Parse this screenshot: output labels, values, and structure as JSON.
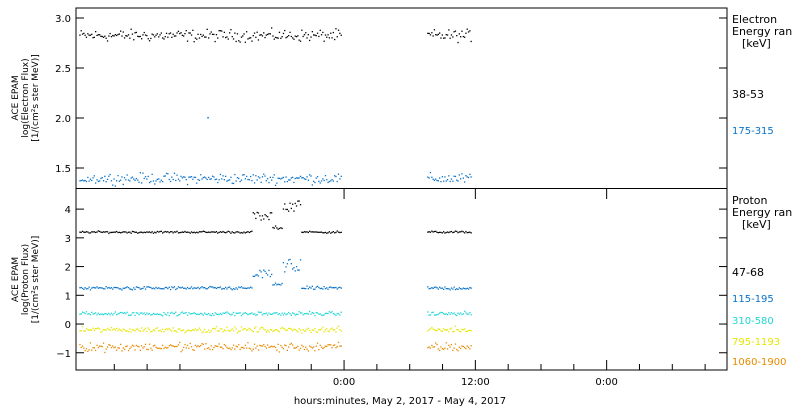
{
  "xlabel": "hours:minutes, May  2, 2017 - May  4, 2017",
  "x_ticks": [
    "0:00",
    "12:00",
    "0:00"
  ],
  "chart_data": [
    {
      "type": "scatter",
      "name": "electron",
      "ylabel": [
        "ACE EPAM",
        "log(Electron Flux)",
        "[1/(cm²s ster MeV)]"
      ],
      "ylim": [
        1.3,
        3.1
      ],
      "y_ticks": [
        "1.5",
        "2.0",
        "2.5",
        "3.0"
      ],
      "y_tick_values": [
        1.5,
        2.0,
        2.5,
        3.0
      ],
      "legend_title": [
        "Electron",
        "Energy ran",
        "[keV]"
      ],
      "data_gap_hours": [
        -0.2,
        7.6
      ],
      "x_range_hours": [
        -24.5,
        35
      ],
      "series": [
        {
          "name": "38-53",
          "color": "#000000",
          "mean": 2.83,
          "noise": 0.05
        },
        {
          "name": "175-315",
          "color": "#0a72c8",
          "mean": 1.4,
          "noise": 0.045,
          "outlier": {
            "x": -12.5,
            "y": 2.01
          }
        }
      ]
    },
    {
      "type": "scatter",
      "name": "proton",
      "ylabel": [
        "ACE EPAM",
        "log(Proton Flux)",
        "[1/(cm²s ster MeV)]"
      ],
      "ylim": [
        -1.6,
        4.7
      ],
      "y_ticks": [
        "−1",
        "0",
        "1",
        "2",
        "3",
        "4"
      ],
      "y_tick_values": [
        -1,
        0,
        1,
        2,
        3,
        4
      ],
      "legend_title": [
        "Proton",
        "Energy ran",
        "[keV]"
      ],
      "series": [
        {
          "name": "47-68",
          "color": "#000000",
          "mean": 3.22,
          "noise": 0.03,
          "bump": 1.0
        },
        {
          "name": "115-195",
          "color": "#0a72c8",
          "mean": 1.27,
          "noise": 0.05,
          "bump": 0.85
        },
        {
          "name": "310-580",
          "color": "#1fd6d6",
          "mean": 0.38,
          "noise": 0.06
        },
        {
          "name": "795-1193",
          "color": "#e6e600",
          "mean": -0.18,
          "noise": 0.08
        },
        {
          "name": "1060-1900",
          "color": "#e88a00",
          "mean": -0.78,
          "noise": 0.13
        }
      ]
    }
  ]
}
